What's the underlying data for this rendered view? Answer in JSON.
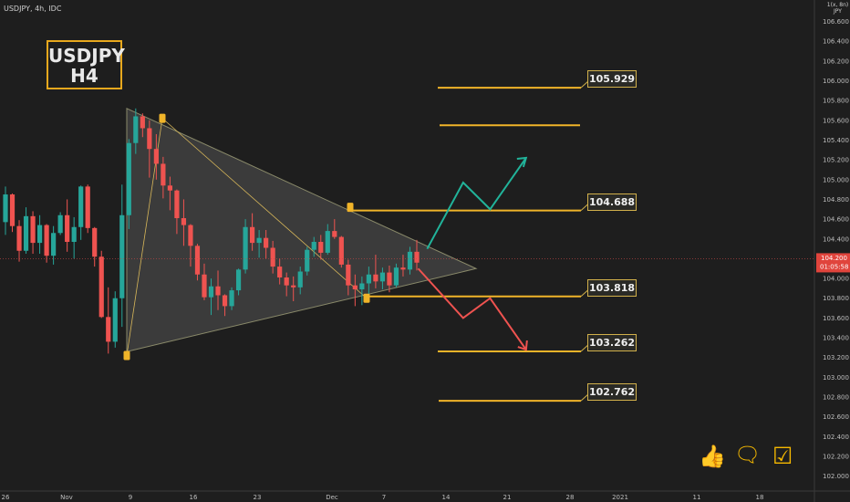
{
  "header": {
    "symbol_label": "USDJPY, 4h, IDC",
    "currency": "JPY"
  },
  "badge": {
    "line1": "USDJPY",
    "line2": "H4"
  },
  "chart_data": {
    "type": "candlestick",
    "symbol": "USDJPY",
    "timeframe": "4h",
    "ylim": [
      101.92,
      106.86
    ],
    "y_ticks": [
      "106.600",
      "106.400",
      "106.200",
      "106.000",
      "105.800",
      "105.600",
      "105.400",
      "105.200",
      "105.000",
      "104.800",
      "104.600",
      "104.400",
      "104.200",
      "104.000",
      "103.800",
      "103.600",
      "103.400",
      "103.200",
      "103.000",
      "102.800",
      "102.600",
      "102.400",
      "102.200",
      "102.000"
    ],
    "x_ticks": [
      "26",
      "Nov",
      "9",
      "16",
      "23",
      "Dec",
      "7",
      "14",
      "21",
      "28",
      "2021",
      "11",
      "18"
    ],
    "current_price": "104.200",
    "countdown": "01:05:58",
    "levels": [
      {
        "label": "105.929",
        "value": 105.929,
        "flag": true
      },
      {
        "label": "",
        "value": 105.55,
        "flag": false
      },
      {
        "label": "104.688",
        "value": 104.688,
        "flag": true
      },
      {
        "label": "103.818",
        "value": 103.818,
        "flag": true
      },
      {
        "label": "103.262",
        "value": 103.262,
        "flag": true
      },
      {
        "label": "102.762",
        "value": 102.762,
        "flag": true
      }
    ],
    "pattern": "symmetrical triangle",
    "triangle": [
      {
        "date": "Nov 9",
        "price": 105.72
      },
      {
        "date": "Dec 16",
        "price": 104.1
      },
      {
        "date": "Nov 9",
        "price": 103.26
      }
    ],
    "markers": [
      {
        "date": "Nov 9",
        "price": 103.22
      },
      {
        "date": "Nov 11",
        "price": 105.62
      },
      {
        "date": "Dec 2",
        "price": 104.72
      },
      {
        "date": "Dec 4",
        "price": 103.8
      }
    ],
    "scenario_up": [
      {
        "date": "Dec 12",
        "price": 104.3
      },
      {
        "date": "Dec 16",
        "price": 104.97
      },
      {
        "date": "Dec 19",
        "price": 104.7
      },
      {
        "date": "Dec 23",
        "price": 105.22
      }
    ],
    "scenario_down": [
      {
        "date": "Dec 11",
        "price": 104.1
      },
      {
        "date": "Dec 16",
        "price": 103.6
      },
      {
        "date": "Dec 19",
        "price": 103.8
      },
      {
        "date": "Dec 23",
        "price": 103.28
      }
    ],
    "candles": [
      [
        104.57,
        104.93,
        104.44,
        104.85
      ],
      [
        104.85,
        104.86,
        104.47,
        104.53
      ],
      [
        104.53,
        104.59,
        104.17,
        104.28
      ],
      [
        104.28,
        104.72,
        104.25,
        104.63
      ],
      [
        104.63,
        104.68,
        104.25,
        104.36
      ],
      [
        104.36,
        104.64,
        104.25,
        104.54
      ],
      [
        104.54,
        104.55,
        104.16,
        104.23
      ],
      [
        104.23,
        104.53,
        104.14,
        104.46
      ],
      [
        104.46,
        104.67,
        104.44,
        104.64
      ],
      [
        104.64,
        104.8,
        104.27,
        104.37
      ],
      [
        104.37,
        104.62,
        104.2,
        104.52
      ],
      [
        104.52,
        104.94,
        104.39,
        104.93
      ],
      [
        104.93,
        104.95,
        104.46,
        104.51
      ],
      [
        104.51,
        104.52,
        104.12,
        104.22
      ],
      [
        104.22,
        104.28,
        103.6,
        103.61
      ],
      [
        103.61,
        103.91,
        103.24,
        103.36
      ],
      [
        103.36,
        103.87,
        103.3,
        103.8
      ],
      [
        103.8,
        104.95,
        103.51,
        104.64
      ],
      [
        104.64,
        105.41,
        104.5,
        105.37
      ],
      [
        105.37,
        105.72,
        105.26,
        105.64
      ],
      [
        105.64,
        105.67,
        105.43,
        105.52
      ],
      [
        105.52,
        105.6,
        105.02,
        105.31
      ],
      [
        105.31,
        105.46,
        105.0,
        105.16
      ],
      [
        105.16,
        105.23,
        104.81,
        104.94
      ],
      [
        104.94,
        105.03,
        104.69,
        104.89
      ],
      [
        104.89,
        104.9,
        104.45,
        104.61
      ],
      [
        104.61,
        104.8,
        104.33,
        104.54
      ],
      [
        104.54,
        104.55,
        104.12,
        104.33
      ],
      [
        104.33,
        104.35,
        103.98,
        104.04
      ],
      [
        104.04,
        104.15,
        103.78,
        103.81
      ],
      [
        103.81,
        104.0,
        103.63,
        103.92
      ],
      [
        103.92,
        104.08,
        103.68,
        103.83
      ],
      [
        103.83,
        103.84,
        103.62,
        103.72
      ],
      [
        103.72,
        103.91,
        103.68,
        103.88
      ],
      [
        103.88,
        104.1,
        103.83,
        104.09
      ],
      [
        104.09,
        104.6,
        104.05,
        104.52
      ],
      [
        104.52,
        104.66,
        104.28,
        104.36
      ],
      [
        104.36,
        104.49,
        104.21,
        104.41
      ],
      [
        104.41,
        104.49,
        104.2,
        104.31
      ],
      [
        104.31,
        104.38,
        104.05,
        104.12
      ],
      [
        104.12,
        104.2,
        103.94,
        104.01
      ],
      [
        104.01,
        104.06,
        103.82,
        103.93
      ],
      [
        103.93,
        104.02,
        103.77,
        103.91
      ],
      [
        103.91,
        104.12,
        103.84,
        104.07
      ],
      [
        104.07,
        104.32,
        104.03,
        104.29
      ],
      [
        104.29,
        104.42,
        104.22,
        104.37
      ],
      [
        104.37,
        104.44,
        104.19,
        104.26
      ],
      [
        104.26,
        104.55,
        104.24,
        104.48
      ],
      [
        104.48,
        104.6,
        104.4,
        104.42
      ],
      [
        104.42,
        104.43,
        104.11,
        104.14
      ],
      [
        104.14,
        104.19,
        103.83,
        103.93
      ],
      [
        103.93,
        104.04,
        103.72,
        103.89
      ],
      [
        103.89,
        104.02,
        103.73,
        103.95
      ],
      [
        103.95,
        104.12,
        103.79,
        104.04
      ],
      [
        104.04,
        104.24,
        103.9,
        103.97
      ],
      [
        103.97,
        104.11,
        103.89,
        104.06
      ],
      [
        104.06,
        104.13,
        103.86,
        103.93
      ],
      [
        103.93,
        104.15,
        103.91,
        104.11
      ],
      [
        104.11,
        104.24,
        104.02,
        104.09
      ],
      [
        104.09,
        104.32,
        104.04,
        104.27
      ],
      [
        104.27,
        104.39,
        104.08,
        104.16
      ]
    ]
  }
}
